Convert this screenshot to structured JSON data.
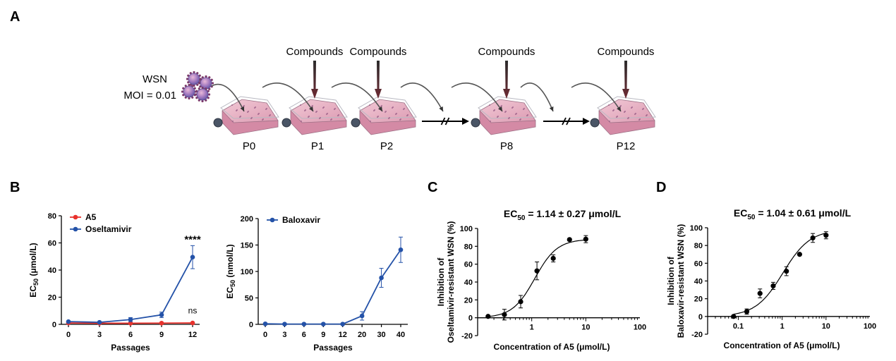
{
  "panel_labels": {
    "a": "A",
    "b": "B",
    "c": "C",
    "d": "D"
  },
  "schematic": {
    "virus_label": "WSN",
    "moi_label": "MOI = 0.01",
    "compound_label": "Compounds",
    "passages": [
      "P0",
      "P1",
      "P2",
      "P8",
      "P12"
    ],
    "compound_added_at": [
      "P1",
      "P2",
      "P8",
      "P12"
    ],
    "break_marker": "//"
  },
  "chart_data": [
    {
      "type": "line",
      "panel": "B",
      "xlabel": "Passages",
      "ylabel": "EC",
      "ylabel_sub": "50",
      "ylabel_unit": " (μmol/L)",
      "categories": [
        "0",
        "3",
        "6",
        "9",
        "12"
      ],
      "ylim": [
        0,
        80
      ],
      "yticks": [
        0,
        20,
        40,
        60,
        80
      ],
      "legend_position": "top-left",
      "series": [
        {
          "name": "A5",
          "color": "#e8312c",
          "values": [
            1.0,
            0.8,
            0.8,
            0.9,
            1.0
          ],
          "errors": [
            0.3,
            0.3,
            0.3,
            0.3,
            0.3
          ]
        },
        {
          "name": "Oseltamivir",
          "color": "#2452a8",
          "values": [
            2.0,
            1.5,
            3.5,
            7.0,
            49.5
          ],
          "errors": [
            0.6,
            0.5,
            1.5,
            2.0,
            8.5
          ]
        }
      ],
      "annotations": [
        {
          "text": "****",
          "x": "12",
          "y": 60
        },
        {
          "text": "ns",
          "x": "12",
          "y": 8
        }
      ]
    },
    {
      "type": "line",
      "panel": "B",
      "xlabel": "Passages",
      "ylabel": "EC",
      "ylabel_sub": "50",
      "ylabel_unit": " (nmol/L)",
      "categories": [
        "0",
        "3",
        "6",
        "9",
        "12",
        "20",
        "30",
        "40"
      ],
      "ylim": [
        0,
        200
      ],
      "yticks": [
        0,
        50,
        100,
        150,
        200
      ],
      "legend_position": "top-left",
      "series": [
        {
          "name": "Baloxavir",
          "color": "#2452a8",
          "values": [
            1,
            0.5,
            0.5,
            0.5,
            0.5,
            16,
            88,
            141
          ],
          "errors": [
            1,
            0.5,
            0.5,
            0.5,
            0.5,
            8,
            18,
            24
          ]
        }
      ]
    },
    {
      "type": "scatter",
      "panel": "C",
      "title": "EC",
      "title_sub": "50",
      "title_value": " = 1.14 ± 0.27 μmol/L",
      "xlabel": "Concentration of A5 (μmol/L)",
      "ylabel_line1": "Inhibition of",
      "ylabel_line2": "Oseltamivir-resistant WSN (%)",
      "xscale": "log",
      "xlim": [
        0.1,
        100
      ],
      "xticks": [
        1,
        10,
        100
      ],
      "xtick_labels": [
        "1",
        "10",
        "100"
      ],
      "ylim": [
        -20,
        100
      ],
      "yticks": [
        -20,
        0,
        20,
        40,
        60,
        80,
        100
      ],
      "fit": {
        "ec50": 1.14,
        "hill": 2.1,
        "bottom": 0,
        "top": 88
      },
      "points": [
        {
          "x": 0.156,
          "y": 1.5,
          "err": 0
        },
        {
          "x": 0.3125,
          "y": 3.5,
          "err": 6
        },
        {
          "x": 0.625,
          "y": 18,
          "err": 7
        },
        {
          "x": 1.25,
          "y": 52.5,
          "err": 10
        },
        {
          "x": 2.5,
          "y": 66.5,
          "err": 4
        },
        {
          "x": 5,
          "y": 87.5,
          "err": 0
        },
        {
          "x": 10,
          "y": 88,
          "err": 4
        }
      ]
    },
    {
      "type": "scatter",
      "panel": "D",
      "title": "EC",
      "title_sub": "50",
      "title_value": " = 1.04 ± 0.61 μmol/L",
      "xlabel": "Concentration of A5 (μmol/L)",
      "ylabel_line1": "Inhibition of",
      "ylabel_line2": "Baloxavir-resistant WSN (%)",
      "xscale": "log",
      "xlim": [
        0.02,
        100
      ],
      "xticks": [
        0.1,
        1,
        10,
        100
      ],
      "xtick_labels": [
        "0.1",
        "1",
        "10",
        "100"
      ],
      "ylim": [
        -20,
        100
      ],
      "yticks": [
        -20,
        0,
        20,
        40,
        60,
        80,
        100
      ],
      "fit": {
        "ec50": 1.04,
        "hill": 1.4,
        "bottom": 0,
        "top": 98
      },
      "points": [
        {
          "x": 0.078,
          "y": 0,
          "err": 0
        },
        {
          "x": 0.156,
          "y": 5.5,
          "err": 3
        },
        {
          "x": 0.3125,
          "y": 26,
          "err": 5
        },
        {
          "x": 0.625,
          "y": 34.5,
          "err": 4
        },
        {
          "x": 1.25,
          "y": 51,
          "err": 5
        },
        {
          "x": 2.5,
          "y": 70,
          "err": 0
        },
        {
          "x": 5,
          "y": 88.5,
          "err": 5
        },
        {
          "x": 10,
          "y": 91.5,
          "err": 4
        }
      ]
    }
  ]
}
